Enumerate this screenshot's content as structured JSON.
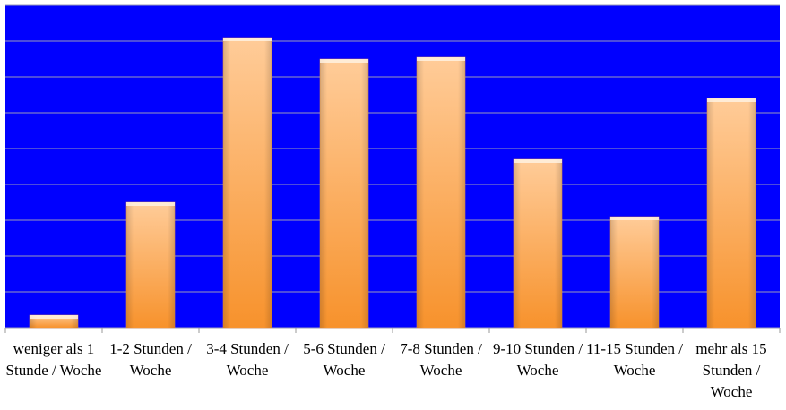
{
  "chart_data": {
    "type": "bar",
    "categories": [
      "weniger als 1 Stunde / Woche",
      "1-2 Stunden / Woche",
      "3-4 Stunden / Woche",
      "5-6 Stunden / Woche",
      "7-8 Stunden / Woche",
      "9-10 Stunden / Woche",
      "11-15 Stunden / Woche",
      "mehr als 15 Stunden / Woche"
    ],
    "values": [
      0.35,
      3.5,
      8.1,
      7.5,
      7.55,
      4.7,
      3.1,
      6.4
    ],
    "color": "#f79a3c",
    "background": "#0000ff",
    "ylim": [
      0,
      9
    ],
    "yticks": [
      0,
      1,
      2,
      3,
      4,
      5,
      6,
      7,
      8,
      9
    ],
    "grid": true
  }
}
